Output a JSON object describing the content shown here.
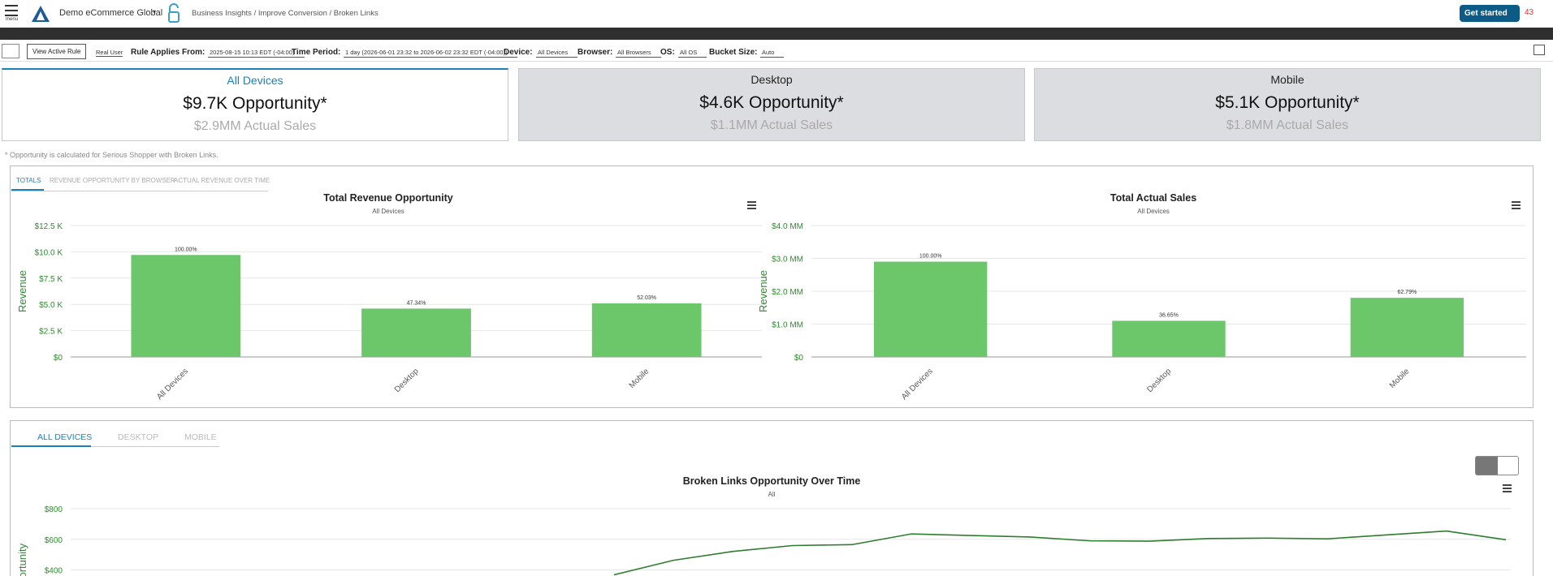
{
  "header": {
    "menu": "menu",
    "account": "Demo eCommerce Global",
    "breadcrumb": "Business Insights / Improve Conversion / Broken Links",
    "get_started": "Get started",
    "alerts": "43"
  },
  "filters": {
    "view_rule": "View Active Rule",
    "mode": "Real User",
    "items": [
      {
        "label": "Rule Applies From:",
        "value": "2025-08-15 10:13 EDT (-04:00)"
      },
      {
        "label": "Time Period:",
        "value": "1 day (2026-06-01 23:32 to 2026-06-02 23:32 EDT (-04:00))"
      },
      {
        "label": "Device:",
        "value": "All Devices"
      },
      {
        "label": "Browser:",
        "value": "All Browsers"
      },
      {
        "label": "OS:",
        "value": "All OS"
      },
      {
        "label": "Bucket Size:",
        "value": "Auto"
      }
    ]
  },
  "cards": [
    {
      "device": "All Devices",
      "opportunity": "$9.7K Opportunity*",
      "sales": "$2.9MM Actual Sales"
    },
    {
      "device": "Desktop",
      "opportunity": "$4.6K Opportunity*",
      "sales": "$1.1MM Actual Sales"
    },
    {
      "device": "Mobile",
      "opportunity": "$5.1K Opportunity*",
      "sales": "$1.8MM Actual Sales"
    }
  ],
  "note": "* Opportunity is calculated for Serious Shopper with Broken Links.",
  "tabs": [
    "TOTALS",
    "REVENUE OPPORTUNITY BY BROWSER",
    "ACTUAL REVENUE OVER TIME"
  ],
  "device_tabs": [
    "ALL DEVICES",
    "DESKTOP",
    "MOBILE"
  ],
  "chart_data": [
    {
      "type": "bar",
      "title": "Total Revenue Opportunity",
      "subtitle": "All Devices",
      "y_label": "Revenue",
      "categories": [
        "All Devices",
        "Desktop",
        "Mobile"
      ],
      "values": [
        9.7,
        4.6,
        5.1
      ],
      "bar_annotations": [
        "100.00%",
        "47.34%",
        "52.03%"
      ],
      "color": "#6cc66a",
      "ylim": [
        0,
        12.5
      ],
      "yticks": [
        {
          "value": 0,
          "label": "$0"
        },
        {
          "value": 2.5,
          "label": "$2.5 K"
        },
        {
          "value": 5,
          "label": "$5.0 K"
        },
        {
          "value": 7.5,
          "label": "$7.5 K"
        },
        {
          "value": 10,
          "label": "$10.0 K"
        },
        {
          "value": 12.5,
          "label": "$12.5 K"
        }
      ],
      "grid": true
    },
    {
      "type": "bar",
      "title": "Total Actual Sales",
      "subtitle": "All Devices",
      "y_label": "Revenue",
      "categories": [
        "All Devices",
        "Desktop",
        "Mobile"
      ],
      "values": [
        2.9,
        1.1,
        1.8
      ],
      "bar_annotations": [
        "100.00%",
        "36.65%",
        "62.79%"
      ],
      "color": "#6cc66a",
      "ylim": [
        0,
        4
      ],
      "yticks": [
        {
          "value": 0,
          "label": "$0"
        },
        {
          "value": 1,
          "label": "$1.0 MM"
        },
        {
          "value": 2,
          "label": "$2.0 MM"
        },
        {
          "value": 3,
          "label": "$3.0 MM"
        },
        {
          "value": 4,
          "label": "$4.0 MM"
        }
      ],
      "grid": true
    },
    {
      "type": "line",
      "title": "Broken Links Opportunity Over Time",
      "subtitle": "All",
      "y_label": "Opportunity",
      "values": [
        368,
        463,
        521,
        559,
        565,
        635,
        625,
        615,
        590,
        588,
        605,
        608,
        603,
        629,
        654,
        597
      ],
      "color": "#2e7d2e",
      "ylim": [
        0,
        800
      ],
      "yticks": [
        {
          "value": 400,
          "label": "$400"
        },
        {
          "value": 600,
          "label": "$600"
        },
        {
          "value": 800,
          "label": "$800"
        }
      ],
      "grid": true
    }
  ]
}
